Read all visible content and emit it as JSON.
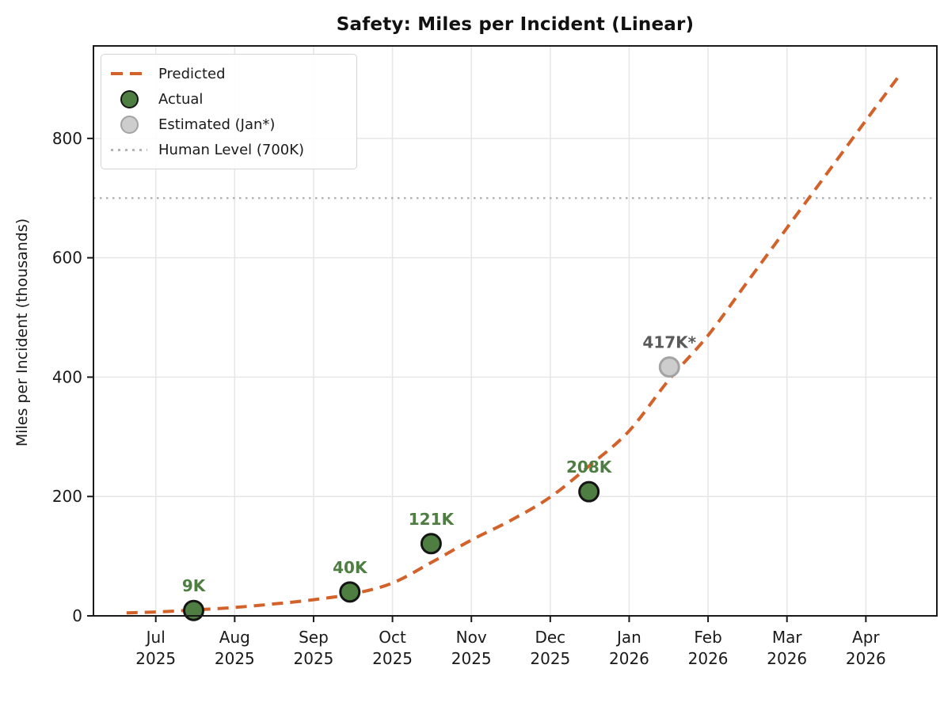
{
  "chart_data": {
    "type": "line",
    "title": "Safety: Miles per Incident (Linear)",
    "xlabel": "",
    "ylabel": "Miles per Incident (thousands)",
    "xlim": [
      -0.79,
      9.9
    ],
    "ylim": [
      0,
      955
    ],
    "grid": true,
    "x_unit": "months from Jul 2025 (t=0 is Jul 1 2025)",
    "y_ticks": [
      0,
      200,
      400,
      600,
      800
    ],
    "x_ticks": [
      {
        "t": 0,
        "label": "Jul",
        "year": "2025"
      },
      {
        "t": 1,
        "label": "Aug",
        "year": "2025"
      },
      {
        "t": 2,
        "label": "Sep",
        "year": "2025"
      },
      {
        "t": 3,
        "label": "Oct",
        "year": "2025"
      },
      {
        "t": 4,
        "label": "Nov",
        "year": "2025"
      },
      {
        "t": 5,
        "label": "Dec",
        "year": "2025"
      },
      {
        "t": 6,
        "label": "Jan",
        "year": "2026"
      },
      {
        "t": 7,
        "label": "Feb",
        "year": "2026"
      },
      {
        "t": 8,
        "label": "Mar",
        "year": "2026"
      },
      {
        "t": 9,
        "label": "Apr",
        "year": "2026"
      }
    ],
    "human_level": {
      "value": 700,
      "label": "Human Level (700K)",
      "color": "#b3b3b3"
    },
    "series": [
      {
        "name": "Predicted",
        "style": "dashed-line",
        "color": "#d2622a",
        "points": [
          [
            -0.37,
            5
          ],
          [
            0,
            6.5
          ],
          [
            0.5,
            10
          ],
          [
            1,
            14
          ],
          [
            1.5,
            20
          ],
          [
            2,
            27
          ],
          [
            2.5,
            37
          ],
          [
            3,
            55
          ],
          [
            3.5,
            90
          ],
          [
            4,
            127
          ],
          [
            4.5,
            160
          ],
          [
            5,
            199
          ],
          [
            5.5,
            252
          ],
          [
            6,
            310
          ],
          [
            6.5,
            395
          ],
          [
            7,
            470
          ],
          [
            7.5,
            560
          ],
          [
            8,
            650
          ],
          [
            8.5,
            740
          ],
          [
            9,
            830
          ],
          [
            9.45,
            910
          ]
        ]
      },
      {
        "name": "Actual",
        "style": "scatter",
        "color": "#4e7e42",
        "edge_color": "#151515",
        "label_color": "#4e7e42",
        "points": [
          {
            "t": 0.48,
            "v": 9,
            "label": "9K",
            "date": "mid-Jul 2025"
          },
          {
            "t": 2.46,
            "v": 40,
            "label": "40K",
            "date": "mid-Sep 2025"
          },
          {
            "t": 3.49,
            "v": 121,
            "label": "121K",
            "date": "mid-Oct 2025"
          },
          {
            "t": 5.49,
            "v": 208,
            "label": "208K",
            "date": "mid-Dec 2025"
          }
        ]
      },
      {
        "name": "Estimated (Jan*)",
        "style": "scatter",
        "color": "#cdcdcd",
        "edge_color": "#a3a3a3",
        "label_color": "#5a5a5a",
        "points": [
          {
            "t": 6.51,
            "v": 417,
            "label": "417K*",
            "date": "mid-Jan 2026"
          }
        ]
      }
    ],
    "legend": [
      {
        "label": "Predicted",
        "swatch": "dash"
      },
      {
        "label": "Actual",
        "swatch": "green-dot"
      },
      {
        "label": "Estimated (Jan*)",
        "swatch": "gray-dot"
      },
      {
        "label": "Human Level (700K)",
        "swatch": "dotted"
      }
    ],
    "legend_position": "upper left"
  },
  "colors": {
    "predicted": "#d2622a",
    "actual_fill": "#4e7e42",
    "actual_edge": "#151515",
    "estimated_fill": "#cdcdcd",
    "estimated_edge": "#a3a3a3",
    "human_level": "#b3b3b3",
    "grid": "#e6e6e6",
    "spine": "#1a1a1a",
    "tick_text": "#1a1a1a"
  }
}
